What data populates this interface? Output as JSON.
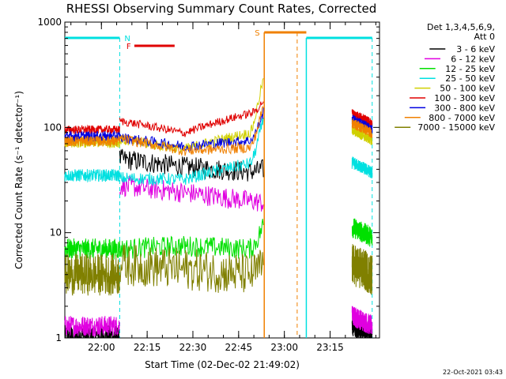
{
  "chart_data": {
    "type": "line",
    "title": "RHESSI Observing Summary Count Rates, Corrected",
    "xlabel": "Start Time (02-Dec-02 21:49:02)",
    "ylabel": "Corrected Count Rate (s⁻¹ detector⁻¹)",
    "y_scale": "log",
    "ylim": [
      1,
      1000
    ],
    "xlim_minutes": [
      21.8,
      23.52
    ],
    "x_ticks": [
      {
        "label": "22:00",
        "t": 22.0
      },
      {
        "label": "22:15",
        "t": 22.25
      },
      {
        "label": "22:30",
        "t": 22.5
      },
      {
        "label": "22:45",
        "t": 22.75
      },
      {
        "label": "23:00",
        "t": 23.0
      },
      {
        "label": "23:15",
        "t": 23.25
      }
    ],
    "y_ticks": [
      {
        "label": "1",
        "v": 1
      },
      {
        "label": "10",
        "v": 10
      },
      {
        "label": "100",
        "v": 100
      },
      {
        "label": "1000",
        "v": 1000
      }
    ],
    "legend": {
      "header_line1": "Det 1,3,4,5,6,9,",
      "header_line2": "Att 0",
      "placement": "right"
    },
    "series": [
      {
        "name": "3 - 6 keV",
        "color": "#000000"
      },
      {
        "name": "6 - 12 keV",
        "color": "#e000e0"
      },
      {
        "name": "12 - 25 keV",
        "color": "#00e000"
      },
      {
        "name": "25 - 50 keV",
        "color": "#00e0e0"
      },
      {
        "name": "50 - 100 keV",
        "color": "#d0d000"
      },
      {
        "name": "100 - 300 keV",
        "color": "#e00000"
      },
      {
        "name": "300 - 800 keV",
        "color": "#0000e0"
      },
      {
        "name": "800 - 7000 keV",
        "color": "#f08000"
      },
      {
        "name": "7000 - 15000 keV",
        "color": "#808000"
      }
    ],
    "flags": [
      {
        "label": "N",
        "color": "#00e0e0"
      },
      {
        "label": "F",
        "color": "#e00000"
      },
      {
        "label": "S",
        "color": "#f08000"
      }
    ],
    "footer": "22-Oct-2021 03:43"
  }
}
